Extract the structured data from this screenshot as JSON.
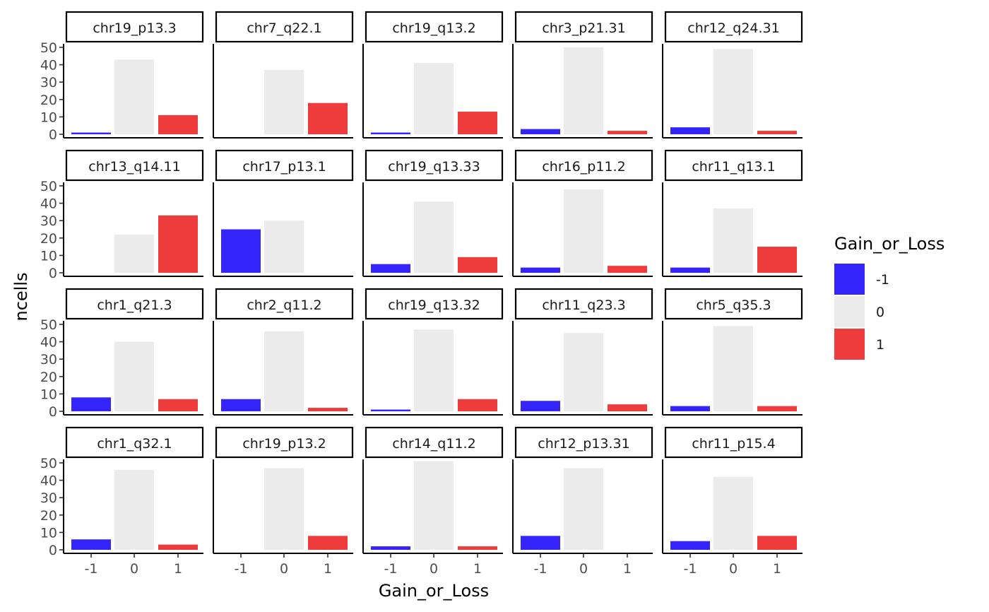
{
  "chart_data": {
    "type": "bar",
    "xlabel": "Gain_or_Loss",
    "ylabel": "ncells",
    "categories": [
      "-1",
      "0",
      "1"
    ],
    "ylim": [
      0,
      52
    ],
    "y_ticks": [
      0,
      10,
      20,
      30,
      40,
      50
    ],
    "grid": false,
    "facet_layout": {
      "rows": 4,
      "cols": 5
    },
    "legend": {
      "title": "Gain_or_Loss",
      "position": "right",
      "entries": [
        {
          "label": "-1",
          "color": "#3325FB"
        },
        {
          "label": "0",
          "color": "#EBEBEB"
        },
        {
          "label": "1",
          "color": "#EE3B3B"
        }
      ]
    },
    "panels": [
      {
        "name": "chr19_p13.3",
        "values": [
          1,
          43,
          11
        ]
      },
      {
        "name": "chr7_q22.1",
        "values": [
          0,
          37,
          18
        ]
      },
      {
        "name": "chr19_q13.2",
        "values": [
          1,
          41,
          13
        ]
      },
      {
        "name": "chr3_p21.31",
        "values": [
          3,
          50,
          2
        ]
      },
      {
        "name": "chr12_q24.31",
        "values": [
          4,
          49,
          2
        ]
      },
      {
        "name": "chr13_q14.11",
        "values": [
          0,
          22,
          33
        ]
      },
      {
        "name": "chr17_p13.1",
        "values": [
          25,
          30,
          0
        ]
      },
      {
        "name": "chr19_q13.33",
        "values": [
          5,
          41,
          9
        ]
      },
      {
        "name": "chr16_p11.2",
        "values": [
          3,
          48,
          4
        ]
      },
      {
        "name": "chr11_q13.1",
        "values": [
          3,
          37,
          15
        ]
      },
      {
        "name": "chr1_q21.3",
        "values": [
          8,
          40,
          7
        ]
      },
      {
        "name": "chr2_q11.2",
        "values": [
          7,
          46,
          2
        ]
      },
      {
        "name": "chr19_q13.32",
        "values": [
          1,
          47,
          7
        ]
      },
      {
        "name": "chr11_q23.3",
        "values": [
          6,
          45,
          4
        ]
      },
      {
        "name": "chr5_q35.3",
        "values": [
          3,
          49,
          3
        ]
      },
      {
        "name": "chr1_q32.1",
        "values": [
          6,
          46,
          3
        ]
      },
      {
        "name": "chr19_p13.2",
        "values": [
          0,
          47,
          8
        ]
      },
      {
        "name": "chr14_q11.2",
        "values": [
          2,
          51,
          2
        ]
      },
      {
        "name": "chr12_p13.31",
        "values": [
          8,
          47,
          0
        ]
      },
      {
        "name": "chr11_p15.4",
        "values": [
          5,
          42,
          8
        ]
      }
    ]
  }
}
